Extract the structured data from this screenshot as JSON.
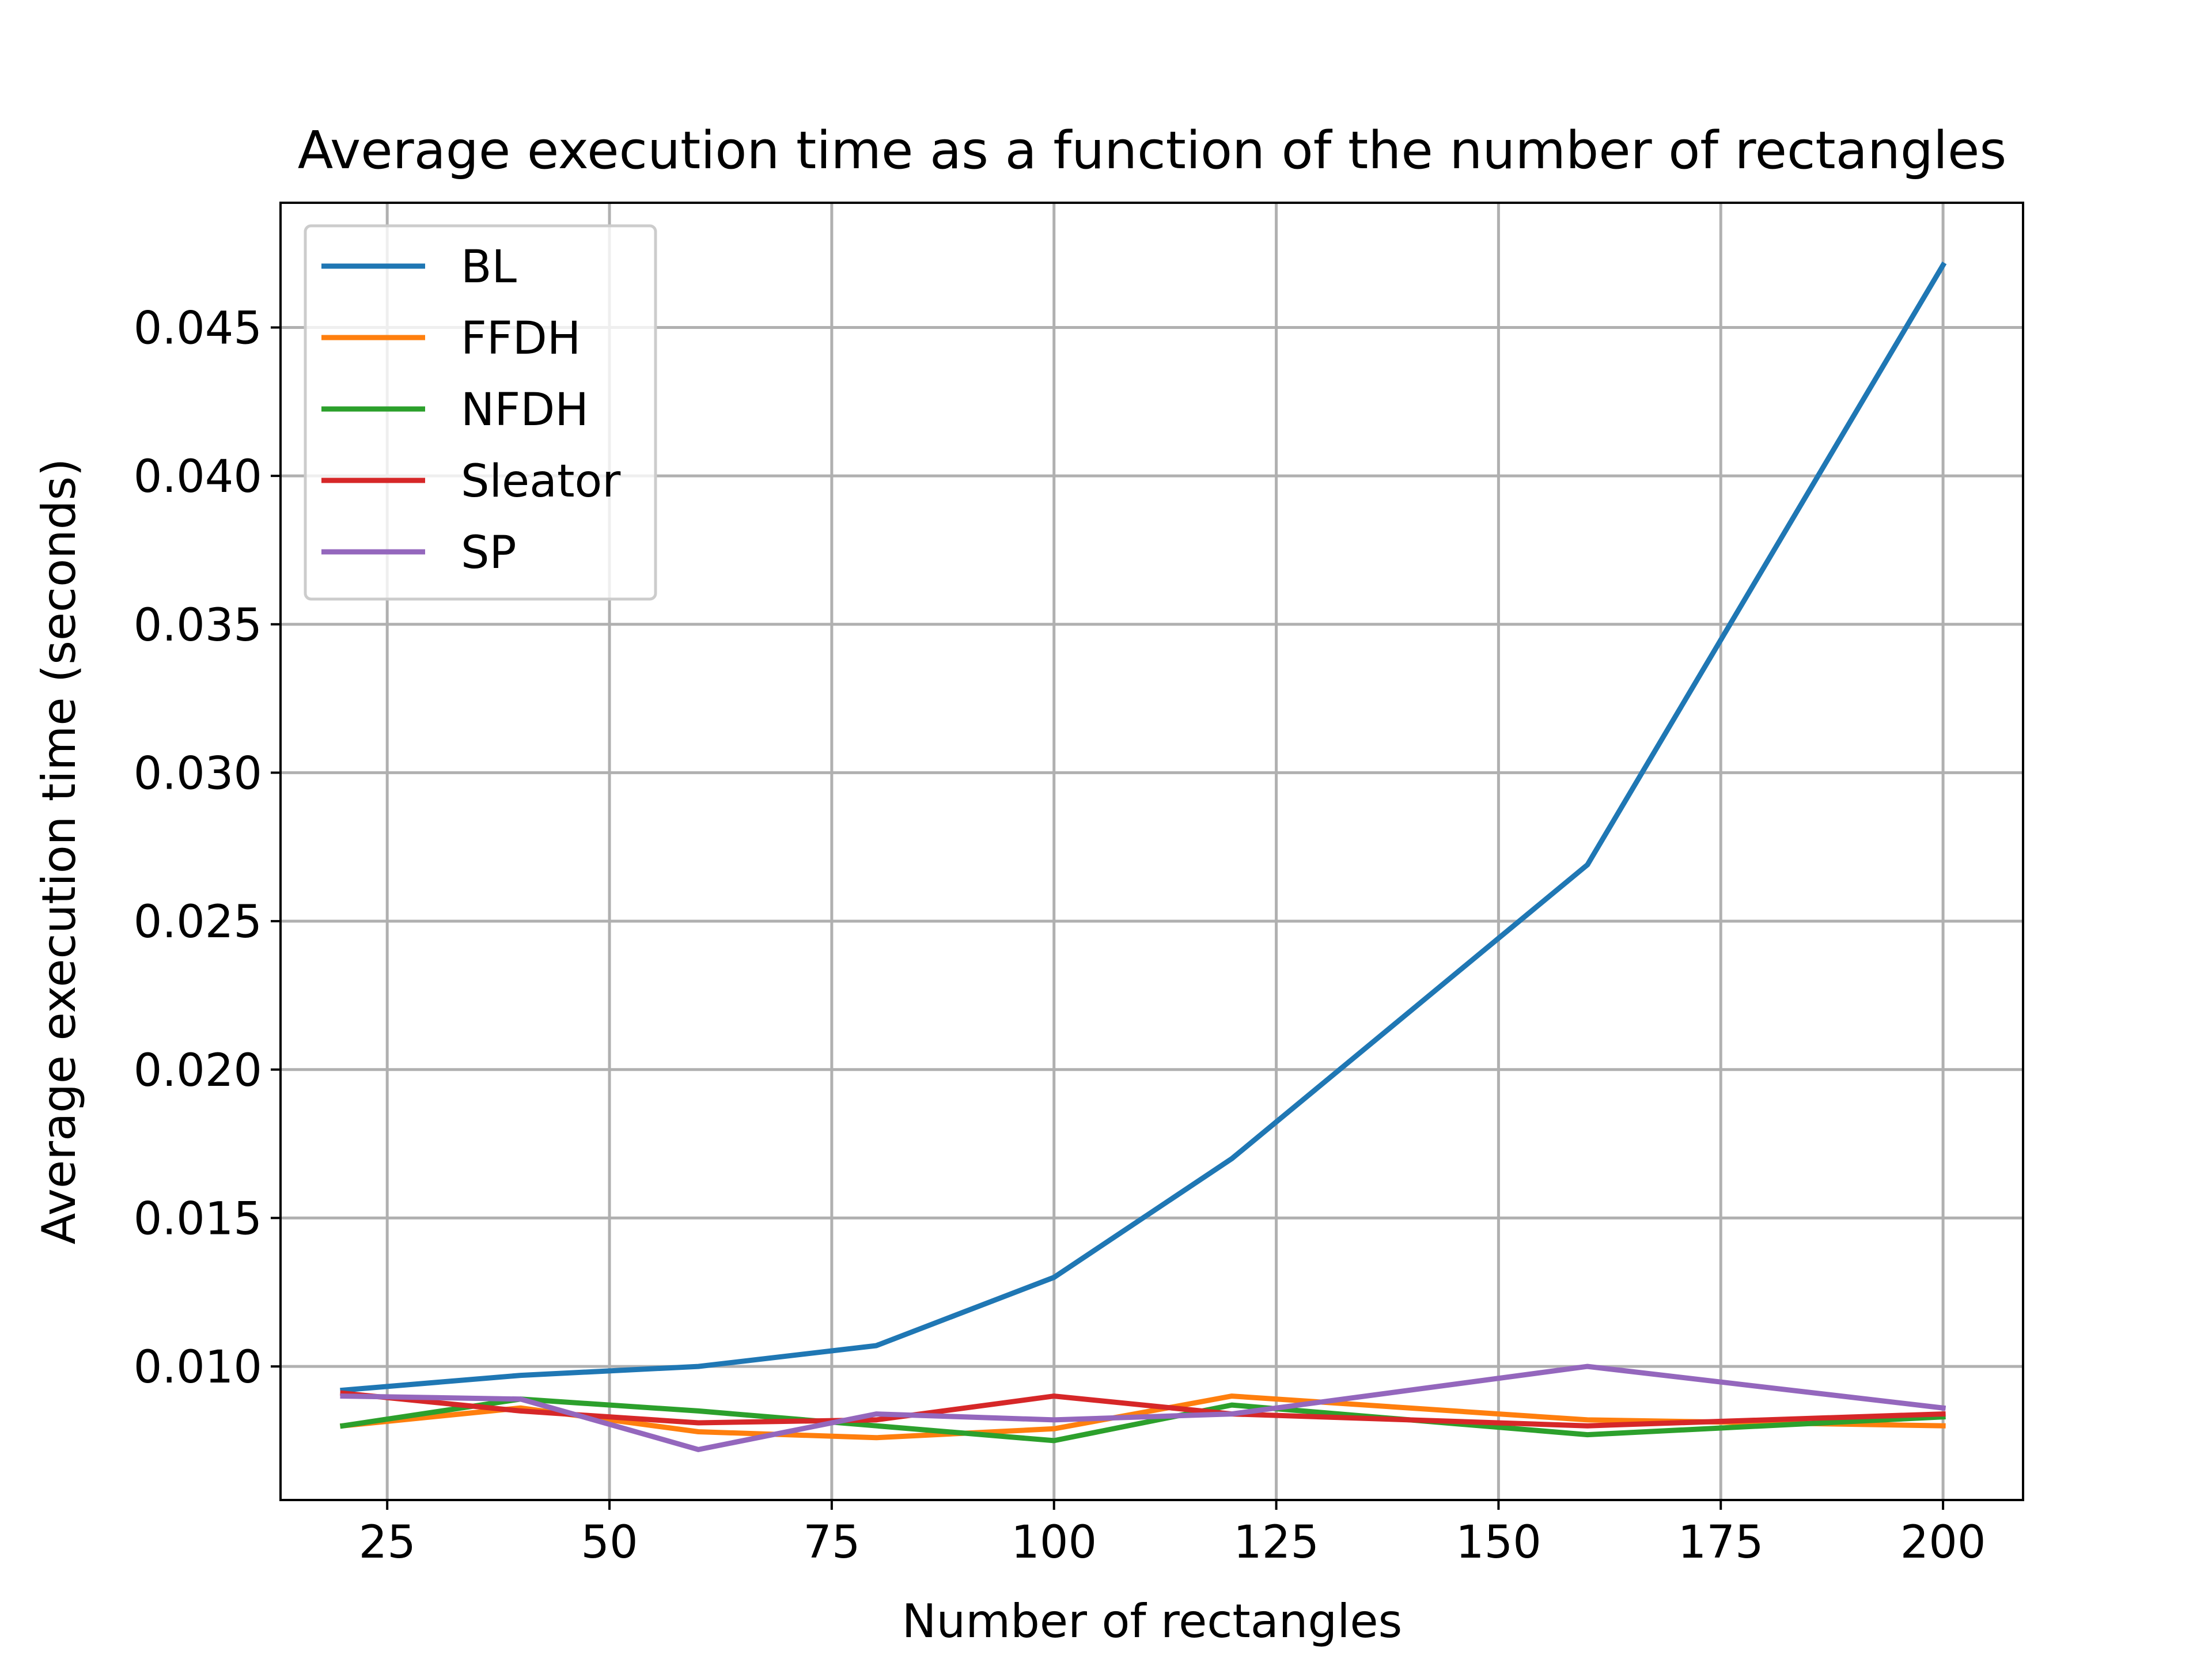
{
  "chart_data": {
    "type": "line",
    "title": "Average execution time as a function of the number of rectangles",
    "xlabel": "Number of rectangles",
    "ylabel": "Average execution time (seconds)",
    "xlim": [
      13,
      209
    ],
    "ylim": [
      0.0055,
      0.0492
    ],
    "xticks": [
      25,
      50,
      75,
      100,
      125,
      150,
      175,
      200
    ],
    "xtick_labels": [
      "25",
      "50",
      "75",
      "100",
      "125",
      "150",
      "175",
      "200"
    ],
    "yticks": [
      0.01,
      0.015,
      0.02,
      0.025,
      0.03,
      0.035,
      0.04,
      0.045
    ],
    "ytick_labels": [
      "0.010",
      "0.015",
      "0.020",
      "0.025",
      "0.030",
      "0.035",
      "0.040",
      "0.045"
    ],
    "grid": true,
    "legend_position": "upper-left",
    "x": [
      20,
      40,
      60,
      80,
      100,
      120,
      160,
      200
    ],
    "series": [
      {
        "name": "BL",
        "color": "#1f77b4",
        "values": [
          0.0092,
          0.0097,
          0.01,
          0.0107,
          0.013,
          0.017,
          0.0269,
          0.0471
        ]
      },
      {
        "name": "FFDH",
        "color": "#ff7f0e",
        "values": [
          0.008,
          0.0086,
          0.0078,
          0.0076,
          0.0079,
          0.009,
          0.0082,
          0.008
        ]
      },
      {
        "name": "NFDH",
        "color": "#2ca02c",
        "values": [
          0.008,
          0.0089,
          0.0085,
          0.008,
          0.0075,
          0.0087,
          0.0077,
          0.0083
        ]
      },
      {
        "name": "Sleator",
        "color": "#d62728",
        "values": [
          0.0091,
          0.0085,
          0.0081,
          0.0082,
          0.009,
          0.0084,
          0.008,
          0.0084
        ]
      },
      {
        "name": "SP",
        "color": "#9467bd",
        "values": [
          0.009,
          0.0089,
          0.0072,
          0.0084,
          0.0082,
          0.0084,
          0.01,
          0.0086
        ]
      }
    ]
  }
}
